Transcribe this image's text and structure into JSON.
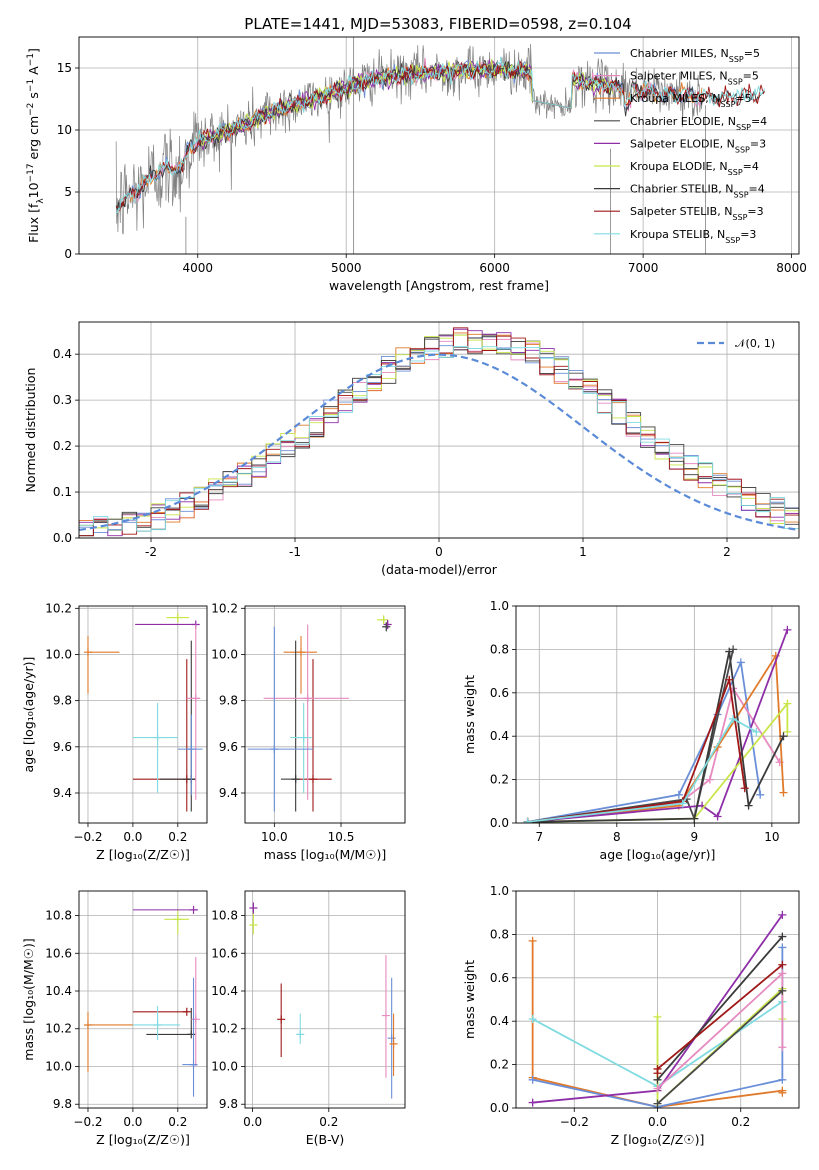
{
  "colors": {
    "Chabrier MILES": "#6a8fd8",
    "Salpeter MILES": "#e68ac0",
    "Kroupa MILES": "#e07a2a",
    "Chabrier ELODIE": "#4a4a4a",
    "Salpeter ELODIE": "#8e2fa8",
    "Kroupa ELODIE": "#c8e64a",
    "Chabrier STELIB": "#3a3a3a",
    "Salpeter STELIB": "#a01818",
    "Kroupa STELIB": "#7fdbe0",
    "data": "#808080",
    "gauss": "#5b8bd8",
    "grid": "#b0b0b0"
  },
  "chart_data": [
    {
      "id": "spectrum",
      "type": "line",
      "title": "PLATE=1441, MJD=53083, FIBERID=0598, z=0.104",
      "xlabel": "wavelength [Angstrom, rest frame]",
      "ylabel_parts": [
        "Flux [f",
        "λ",
        "10",
        "−17",
        " erg cm",
        "−2",
        " s",
        "−1",
        " A",
        "−1",
        "]"
      ],
      "xlim": [
        3200,
        8050
      ],
      "ylim": [
        0,
        17.5
      ],
      "xticks": [
        4000,
        5000,
        6000,
        7000,
        8000
      ],
      "yticks": [
        0,
        5,
        10,
        15
      ],
      "continuum_x": [
        3450,
        3600,
        3750,
        3900,
        3950,
        4100,
        4300,
        4500,
        4800,
        5000,
        5200,
        5500,
        5800,
        6000,
        6200,
        6500,
        6800,
        7000,
        7200,
        7500,
        7800
      ],
      "continuum_y": [
        3.8,
        5.2,
        6.8,
        7.0,
        8.8,
        9.5,
        10.3,
        11.5,
        12.6,
        13.4,
        14.2,
        14.6,
        14.8,
        14.9,
        14.8,
        14.1,
        13.5,
        13.2,
        12.9,
        12.6,
        12.9
      ],
      "legend": [
        {
          "model": "Chabrier MILES",
          "label": "Chabrier MILES, N",
          "sub": "SSP",
          "n": "=5"
        },
        {
          "model": "Salpeter MILES",
          "label": "Salpeter MILES, N",
          "sub": "SSP",
          "n": "=5"
        },
        {
          "model": "Kroupa MILES",
          "label": "Kroupa MILES, N",
          "sub": "SSP",
          "n": "=5"
        },
        {
          "model": "Chabrier ELODIE",
          "label": "Chabrier ELODIE, N",
          "sub": "SSP",
          "n": "=4"
        },
        {
          "model": "Salpeter ELODIE",
          "label": "Salpeter ELODIE, N",
          "sub": "SSP",
          "n": "=3"
        },
        {
          "model": "Kroupa ELODIE",
          "label": "Kroupa ELODIE, N",
          "sub": "SSP",
          "n": "=4"
        },
        {
          "model": "Chabrier STELIB",
          "label": "Chabrier STELIB, N",
          "sub": "SSP",
          "n": "=4"
        },
        {
          "model": "Salpeter STELIB",
          "label": "Salpeter STELIB, N",
          "sub": "SSP",
          "n": "=3"
        },
        {
          "model": "Kroupa STELIB",
          "label": "Kroupa STELIB, N",
          "sub": "SSP",
          "n": "=3"
        }
      ]
    },
    {
      "id": "residuals",
      "type": "bar",
      "xlabel": "(data-model)/error",
      "ylabel": "Normed distribution",
      "xlim": [
        -2.5,
        2.5
      ],
      "ylim": [
        0,
        0.47
      ],
      "xticks": [
        -2,
        -1,
        0,
        1,
        2
      ],
      "yticks": [
        0.0,
        0.1,
        0.2,
        0.3,
        0.4
      ],
      "legend_label": "𝒩(0, 1)",
      "bin_width": 0.1
    },
    {
      "id": "age-Z",
      "type": "scatter",
      "xlabel": "Z [log₁₀(Z/Z☉)]",
      "ylabel": "age  [log₁₀(age/yr)]",
      "xlim": [
        -0.24,
        0.33
      ],
      "ylim": [
        9.27,
        10.21
      ],
      "xticks": [
        -0.2,
        0.0,
        0.2
      ],
      "xticklabels": [
        "−0.2",
        "0.0",
        "0.2"
      ],
      "yticks": [
        9.4,
        9.6,
        9.8,
        10.0,
        10.2
      ],
      "points": [
        {
          "model": "Kroupa MILES",
          "x": -0.2,
          "y": 10.01,
          "xerr": [
            0.0,
            0.14
          ],
          "yerr": [
            0.18,
            0.07
          ]
        },
        {
          "model": "Kroupa ELODIE",
          "x": 0.2,
          "y": 10.16,
          "xerr": [
            0.05,
            0.05
          ],
          "yerr": [
            0.02,
            0.02
          ]
        },
        {
          "model": "Salpeter ELODIE",
          "x": 0.28,
          "y": 10.13,
          "xerr": [
            0.27,
            0.0
          ],
          "yerr": [
            0.0,
            0.0
          ]
        },
        {
          "model": "Salpeter STELIB",
          "x": 0.24,
          "y": 9.46,
          "xerr": [
            0.24,
            0.04
          ],
          "yerr": [
            0.14,
            0.52
          ]
        },
        {
          "model": "Chabrier STELIB",
          "x": 0.26,
          "y": 9.46,
          "xerr": [
            0.14,
            0.02
          ],
          "yerr": [
            0.14,
            0.6
          ]
        },
        {
          "model": "Salpeter MILES",
          "x": 0.28,
          "y": 9.81,
          "xerr": [
            0.04,
            0.02
          ],
          "yerr": [
            0.44,
            0.32
          ]
        },
        {
          "model": "Kroupa STELIB",
          "x": 0.11,
          "y": 9.64,
          "xerr": [
            0.11,
            0.09
          ],
          "yerr": [
            0.24,
            0.15
          ]
        },
        {
          "model": "Chabrier MILES",
          "x": 0.26,
          "y": 9.59,
          "xerr": [
            0.06,
            0.05
          ],
          "yerr": [
            0.2,
            0.15
          ]
        }
      ]
    },
    {
      "id": "age-mass",
      "type": "scatter",
      "xlabel": "mass [log₁₀(M/M☉)]",
      "xlim": [
        9.78,
        10.98
      ],
      "ylim": [
        9.27,
        10.21
      ],
      "xticks": [
        10.0,
        10.5
      ],
      "xticklabels": [
        "10.0",
        "10.5"
      ],
      "yticks": [
        9.4,
        9.6,
        9.8,
        10.0,
        10.2
      ],
      "points": [
        {
          "model": "Kroupa MILES",
          "x": 10.2,
          "y": 10.01,
          "xerr": [
            0.13,
            0.12
          ],
          "yerr": [
            0.18,
            0.07
          ]
        },
        {
          "model": "Kroupa ELODIE",
          "x": 10.82,
          "y": 10.15,
          "xerr": [
            0.05,
            0.03
          ],
          "yerr": [
            0.02,
            0.02
          ]
        },
        {
          "model": "Salpeter ELODIE",
          "x": 10.85,
          "y": 10.13,
          "xerr": [
            0.02,
            0.0
          ],
          "yerr": [
            0.02,
            0.02
          ]
        },
        {
          "model": "Chabrier ELODIE",
          "x": 10.84,
          "y": 10.12,
          "xerr": [
            0.03,
            0.0
          ],
          "yerr": [
            0.02,
            0.02
          ]
        },
        {
          "model": "Salpeter STELIB",
          "x": 10.29,
          "y": 9.46,
          "xerr": [
            0.15,
            0.14
          ],
          "yerr": [
            0.14,
            0.52
          ]
        },
        {
          "model": "Chabrier STELIB",
          "x": 10.16,
          "y": 9.46,
          "xerr": [
            0.11,
            0.0
          ],
          "yerr": [
            0.14,
            0.6
          ]
        },
        {
          "model": "Salpeter MILES",
          "x": 10.25,
          "y": 9.81,
          "xerr": [
            0.33,
            0.31
          ],
          "yerr": [
            0.44,
            0.32
          ]
        },
        {
          "model": "Kroupa STELIB",
          "x": 10.22,
          "y": 9.64,
          "xerr": [
            0.1,
            0.06
          ],
          "yerr": [
            0.24,
            0.15
          ]
        },
        {
          "model": "Chabrier MILES",
          "x": 10.0,
          "y": 9.59,
          "xerr": [
            0.2,
            0.29
          ],
          "yerr": [
            0.27,
            0.53
          ]
        }
      ]
    },
    {
      "id": "massweight-age",
      "type": "line",
      "xlabel": "age  [log₁₀(age/yr)]",
      "ylabel": "mass weight",
      "xlim": [
        6.7,
        10.35
      ],
      "ylim": [
        0,
        1.0
      ],
      "xticks": [
        7,
        8,
        9,
        10
      ],
      "yticks": [
        0.0,
        0.2,
        0.4,
        0.6,
        0.8,
        1.0
      ],
      "series": [
        {
          "model": "Chabrier MILES",
          "x": [
            6.85,
            8.8,
            9.3,
            9.6,
            9.85
          ],
          "y": [
            0.005,
            0.13,
            0.5,
            0.74,
            0.13
          ]
        },
        {
          "model": "Salpeter MILES",
          "x": [
            6.85,
            8.8,
            9.2,
            9.5,
            10.1
          ],
          "y": [
            0.005,
            0.09,
            0.2,
            0.62,
            0.28
          ]
        },
        {
          "model": "Kroupa MILES",
          "x": [
            6.85,
            8.8,
            9.3,
            10.05,
            10.15
          ],
          "y": [
            0.005,
            0.08,
            0.35,
            0.77,
            0.14
          ]
        },
        {
          "model": "Chabrier ELODIE",
          "x": [
            6.85,
            8.9,
            9.0,
            9.5
          ],
          "y": [
            0.005,
            0.11,
            0.02,
            0.8
          ]
        },
        {
          "model": "Salpeter ELODIE",
          "x": [
            6.85,
            9.1,
            9.3,
            10.2
          ],
          "y": [
            0.005,
            0.08,
            0.03,
            0.89
          ]
        },
        {
          "model": "Kroupa ELODIE",
          "x": [
            6.85,
            9.0,
            10.2,
            10.2
          ],
          "y": [
            0.005,
            0.02,
            0.55,
            0.42
          ]
        },
        {
          "model": "Chabrier STELIB",
          "x": [
            6.85,
            9.0,
            9.45,
            9.7,
            10.15
          ],
          "y": [
            0.005,
            0.02,
            0.79,
            0.08,
            0.4
          ]
        },
        {
          "model": "Salpeter STELIB",
          "x": [
            6.85,
            8.85,
            9.45,
            9.65
          ],
          "y": [
            0.005,
            0.1,
            0.66,
            0.16
          ]
        },
        {
          "model": "Kroupa STELIB",
          "x": [
            6.85,
            8.85,
            9.5,
            9.8
          ],
          "y": [
            0.005,
            0.09,
            0.48,
            0.42
          ]
        }
      ]
    },
    {
      "id": "mass-Z",
      "type": "scatter",
      "xlabel": "Z [log₁₀(Z/Z☉)]",
      "ylabel": "mass [log₁₀(M/M☉)]",
      "xlim": [
        -0.24,
        0.33
      ],
      "ylim": [
        9.78,
        10.93
      ],
      "xticks": [
        -0.2,
        0.0,
        0.2
      ],
      "xticklabels": [
        "−0.2",
        "0.0",
        "0.2"
      ],
      "yticks": [
        9.8,
        10.0,
        10.2,
        10.4,
        10.6,
        10.8
      ],
      "points": [
        {
          "model": "Kroupa MILES",
          "x": -0.2,
          "y": 10.22,
          "xerr": [
            0.0,
            0.2
          ],
          "yerr": [
            0.25,
            0.07
          ]
        },
        {
          "model": "Kroupa ELODIE",
          "x": 0.2,
          "y": 10.78,
          "xerr": [
            0.06,
            0.05
          ],
          "yerr": [
            0.08,
            0.05
          ]
        },
        {
          "model": "Salpeter ELODIE",
          "x": 0.27,
          "y": 10.83,
          "xerr": [
            0.27,
            0.02
          ],
          "yerr": [
            0.0,
            0.0
          ]
        },
        {
          "model": "Salpeter STELIB",
          "x": 0.24,
          "y": 10.29,
          "xerr": [
            0.24,
            0.0
          ],
          "yerr": [
            0.0,
            0.0
          ]
        },
        {
          "model": "Chabrier STELIB",
          "x": 0.26,
          "y": 10.17,
          "xerr": [
            0.2,
            0.0
          ],
          "yerr": [
            0.0,
            0.14
          ]
        },
        {
          "model": "Salpeter MILES",
          "x": 0.28,
          "y": 10.25,
          "xerr": [
            0.02,
            0.0
          ],
          "yerr": [
            0.25,
            0.33
          ]
        },
        {
          "model": "Kroupa STELIB",
          "x": 0.11,
          "y": 10.22,
          "xerr": [
            0.11,
            0.1
          ],
          "yerr": [
            0.08,
            0.1
          ]
        },
        {
          "model": "Chabrier MILES",
          "x": 0.27,
          "y": 10.01,
          "xerr": [
            0.05,
            0.0
          ],
          "yerr": [
            0.17,
            0.46
          ]
        }
      ]
    },
    {
      "id": "mass-EBV",
      "type": "scatter",
      "xlabel": "E(B-V)",
      "xlim": [
        -0.02,
        0.4
      ],
      "ylim": [
        9.78,
        10.93
      ],
      "xticks": [
        0.0,
        0.2
      ],
      "xticklabels": [
        "0.0",
        "0.2"
      ],
      "yticks": [
        9.8,
        10.0,
        10.2,
        10.4,
        10.6,
        10.8
      ],
      "points": [
        {
          "model": "Kroupa ELODIE",
          "x": 0.002,
          "y": 10.75,
          "yerr": [
            0.05,
            0.1
          ]
        },
        {
          "model": "Salpeter ELODIE",
          "x": 0.002,
          "y": 10.84,
          "yerr": [
            0.03,
            0.03
          ]
        },
        {
          "model": "Salpeter STELIB",
          "x": 0.075,
          "y": 10.25,
          "yerr": [
            0.2,
            0.19
          ]
        },
        {
          "model": "Kroupa STELIB",
          "x": 0.125,
          "y": 10.17,
          "yerr": [
            0.05,
            0.11
          ]
        },
        {
          "model": "Salpeter MILES",
          "x": 0.35,
          "y": 10.27,
          "yerr": [
            0.33,
            0.32
          ]
        },
        {
          "model": "Chabrier MILES",
          "x": 0.365,
          "y": 10.15,
          "yerr": [
            0.32,
            0.32
          ]
        },
        {
          "model": "Kroupa MILES",
          "x": 0.37,
          "y": 10.12,
          "yerr": [
            0.17,
            0.16
          ]
        }
      ]
    },
    {
      "id": "massweight-Z",
      "type": "line",
      "xlabel": "Z [log₁₀(Z/Z☉)]",
      "ylabel": "mass weight",
      "xlim": [
        -0.34,
        0.34
      ],
      "ylim": [
        0,
        1.0
      ],
      "xticks": [
        -0.2,
        0.0,
        0.2
      ],
      "xticklabels": [
        "−0.2",
        "0.0",
        "0.2"
      ],
      "yticks": [
        0.0,
        0.2,
        0.4,
        0.6,
        0.8,
        1.0
      ],
      "series": [
        {
          "model": "Kroupa MILES",
          "x": [
            -0.3,
            -0.3,
            0.0,
            0.3,
            0.3
          ],
          "y": [
            0.77,
            0.14,
            0.005,
            0.08,
            0.07
          ]
        },
        {
          "model": "Chabrier MILES",
          "x": [
            -0.3,
            0.0,
            0.3,
            0.3
          ],
          "y": [
            0.13,
            0.005,
            0.13,
            0.74
          ]
        },
        {
          "model": "Kroupa STELIB",
          "x": [
            -0.3,
            0.0,
            0.3
          ],
          "y": [
            0.41,
            0.1,
            0.49
          ]
        },
        {
          "model": "Salpeter ELODIE",
          "x": [
            -0.3,
            0.0,
            0.3
          ],
          "y": [
            0.025,
            0.08,
            0.89
          ]
        },
        {
          "model": "Kroupa ELODIE",
          "x": [
            0.0,
            0.0,
            0.3,
            0.3
          ],
          "y": [
            0.42,
            0.02,
            0.55,
            0.41
          ]
        },
        {
          "model": "Chabrier STELIB",
          "x": [
            0.0,
            0.3
          ],
          "y": [
            0.13,
            0.79
          ]
        },
        {
          "model": "Salpeter STELIB",
          "x": [
            0.0,
            0.0,
            0.3
          ],
          "y": [
            0.16,
            0.18,
            0.66
          ]
        },
        {
          "model": "Salpeter MILES",
          "x": [
            0.0,
            0.3,
            0.3
          ],
          "y": [
            0.09,
            0.62,
            0.28
          ]
        },
        {
          "model": "Chabrier ELODIE",
          "x": [
            0.0,
            0.3
          ],
          "y": [
            0.02,
            0.54
          ]
        }
      ]
    }
  ]
}
